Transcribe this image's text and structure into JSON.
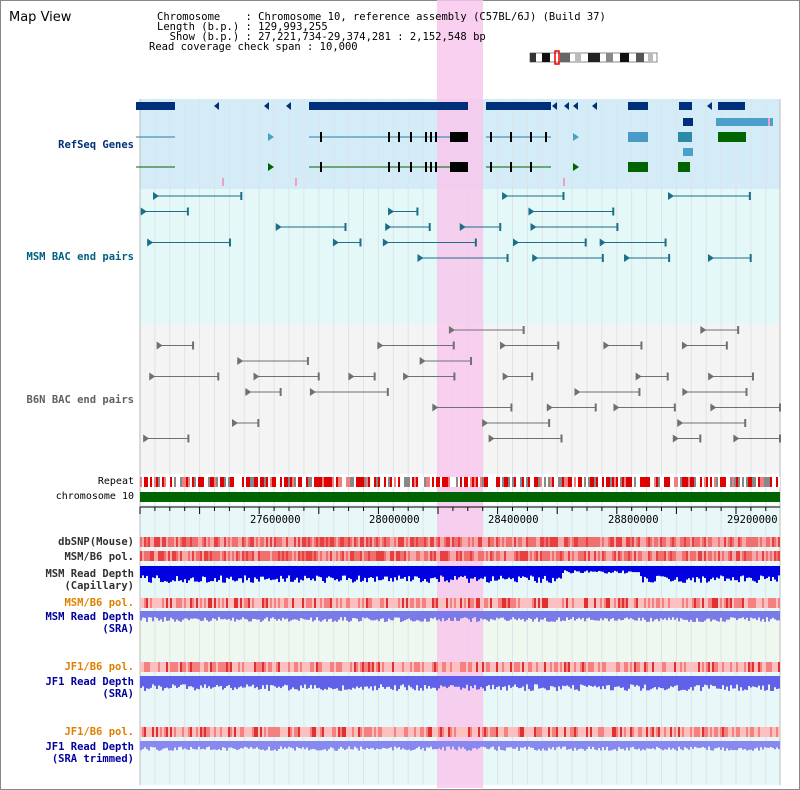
{
  "header": {
    "title": "Map View",
    "info_lines": [
      "Chromosome    : Chromosome 10, reference assembly (C57BL/6J) (Build 37)",
      "Length (b.p.) : 129,993,255",
      "  Show (b.p.) : 27,221,734-29,374,281 : 2,152,548 bp",
      "Read coverage check span : 10,000"
    ]
  },
  "tracks": {
    "refseq": {
      "label": "RefSeq Genes",
      "color": "#00307a"
    },
    "msm_bac": {
      "label": "MSM BAC end pairs",
      "color": "#006080"
    },
    "b6n_bac": {
      "label": "B6N BAC end pairs",
      "color": "#606060"
    },
    "repeat": {
      "label": "Repeat"
    },
    "chromosome": {
      "label": "chromosome 10"
    }
  },
  "axis": {
    "ticks": [
      "27600000",
      "28000000",
      "28400000",
      "28800000",
      "29200000"
    ]
  },
  "lower_tracks": [
    {
      "id": "dbsnp",
      "lines": [
        "dbSNP(Mouse)"
      ],
      "color": "#303030"
    },
    {
      "id": "msm_b6_pol",
      "lines": [
        "MSM/B6 pol."
      ],
      "color": "#303030"
    },
    {
      "id": "msm_depth_cap",
      "lines": [
        "MSM Read Depth",
        "(Capillary)"
      ],
      "color": "#303030"
    },
    {
      "id": "msm_b6_pol_sra",
      "lines": [
        "MSM/B6 pol."
      ],
      "color": "#e08000"
    },
    {
      "id": "msm_depth_sra",
      "lines": [
        "MSM Read Depth",
        "(SRA)"
      ],
      "color": "#0000a0"
    },
    {
      "id": "jf1_b6_pol",
      "lines": [
        "JF1/B6 pol."
      ],
      "color": "#e08000"
    },
    {
      "id": "jf1_depth_sra",
      "lines": [
        "JF1 Read Depth",
        "(SRA)"
      ],
      "color": "#0000a0"
    },
    {
      "id": "jf1_b6_pol_trim",
      "lines": [
        "JF1/B6 pol."
      ],
      "color": "#e08000"
    },
    {
      "id": "jf1_depth_trim",
      "lines": [
        "JF1 Read Depth",
        "(SRA trimmed)"
      ],
      "color": "#0000a0"
    }
  ],
  "colors": {
    "highlight": "#f8c8ec",
    "refseq_bg": "#d4ecf8",
    "bac_bg": "#e4f8f8",
    "b6n_bg": "#f4f4f4",
    "chrom_green": "#006400"
  }
}
